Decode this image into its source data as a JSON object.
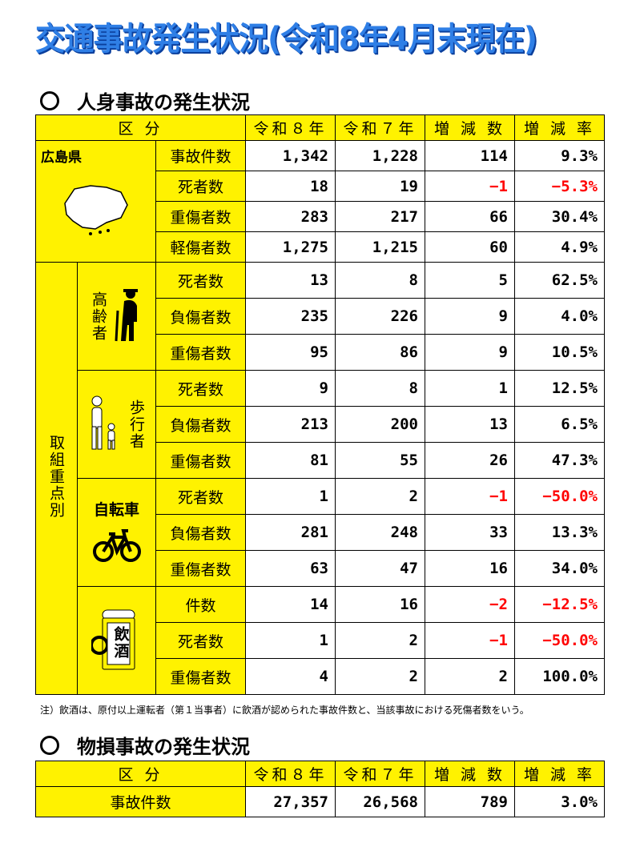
{
  "title": "交通事故発生状況(令和8年4月末現在)",
  "section1_title": "人身事故の発生状況",
  "section2_title": "物損事故の発生状況",
  "headers": {
    "kubun": "区 分",
    "r8": "令和８年",
    "r7": "令和７年",
    "diff": "増 減 数",
    "rate": "増 減 率"
  },
  "prefecture": "広島県",
  "prefecture_icon": "hiroshima-map-icon",
  "pref_rows": [
    {
      "label": "事故件数",
      "r8": "1,342",
      "r7": "1,228",
      "diff": "114",
      "rate": "9.3%",
      "neg_diff": false,
      "neg_rate": false
    },
    {
      "label": "死者数",
      "r8": "18",
      "r7": "19",
      "diff": "−1",
      "rate": "−5.3%",
      "neg_diff": true,
      "neg_rate": true
    },
    {
      "label": "重傷者数",
      "r8": "283",
      "r7": "217",
      "diff": "66",
      "rate": "30.4%",
      "neg_diff": false,
      "neg_rate": false
    },
    {
      "label": "軽傷者数",
      "r8": "1,275",
      "r7": "1,215",
      "diff": "60",
      "rate": "4.9%",
      "neg_diff": false,
      "neg_rate": false
    }
  ],
  "focus_label": "取組重点別",
  "groups": [
    {
      "name": "高齢者",
      "icon": "elderly-person-icon",
      "rows": [
        {
          "label": "死者数",
          "r8": "13",
          "r7": "8",
          "diff": "5",
          "rate": "62.5%",
          "neg_diff": false,
          "neg_rate": false
        },
        {
          "label": "負傷者数",
          "r8": "235",
          "r7": "226",
          "diff": "9",
          "rate": "4.0%",
          "neg_diff": false,
          "neg_rate": false
        },
        {
          "label": "重傷者数",
          "r8": "95",
          "r7": "86",
          "diff": "9",
          "rate": "10.5%",
          "neg_diff": false,
          "neg_rate": false
        }
      ]
    },
    {
      "name": "歩行者",
      "icon": "pedestrian-parent-child-icon",
      "rows": [
        {
          "label": "死者数",
          "r8": "9",
          "r7": "8",
          "diff": "1",
          "rate": "12.5%",
          "neg_diff": false,
          "neg_rate": false
        },
        {
          "label": "負傷者数",
          "r8": "213",
          "r7": "200",
          "diff": "13",
          "rate": "6.5%",
          "neg_diff": false,
          "neg_rate": false
        },
        {
          "label": "重傷者数",
          "r8": "81",
          "r7": "55",
          "diff": "26",
          "rate": "47.3%",
          "neg_diff": false,
          "neg_rate": false
        }
      ]
    },
    {
      "name": "自転車",
      "icon": "bicycle-icon",
      "rows": [
        {
          "label": "死者数",
          "r8": "1",
          "r7": "2",
          "diff": "−1",
          "rate": "−50.0%",
          "neg_diff": true,
          "neg_rate": true
        },
        {
          "label": "負傷者数",
          "r8": "281",
          "r7": "248",
          "diff": "33",
          "rate": "13.3%",
          "neg_diff": false,
          "neg_rate": false
        },
        {
          "label": "重傷者数",
          "r8": "63",
          "r7": "47",
          "diff": "16",
          "rate": "34.0%",
          "neg_diff": false,
          "neg_rate": false
        }
      ]
    },
    {
      "name": "飲酒",
      "icon": "beer-mug-icon",
      "rows": [
        {
          "label": "件数",
          "r8": "14",
          "r7": "16",
          "diff": "−2",
          "rate": "−12.5%",
          "neg_diff": true,
          "neg_rate": true
        },
        {
          "label": "死者数",
          "r8": "1",
          "r7": "2",
          "diff": "−1",
          "rate": "−50.0%",
          "neg_diff": true,
          "neg_rate": true
        },
        {
          "label": "重傷者数",
          "r8": "4",
          "r7": "2",
          "diff": "2",
          "rate": "100.0%",
          "neg_diff": false,
          "neg_rate": false
        }
      ]
    }
  ],
  "note": "注）飲酒は、原付以上運転者（第１当事者）に飲酒が認められた事故件数と、当該事故における死傷者数をいう。",
  "property": {
    "label": "事故件数",
    "r8": "27,357",
    "r7": "26,568",
    "diff": "789",
    "rate": "3.0%"
  },
  "colors": {
    "yellow": "#fff200",
    "title_blue": "#2f7fe6",
    "negative_red": "#ff0000"
  }
}
